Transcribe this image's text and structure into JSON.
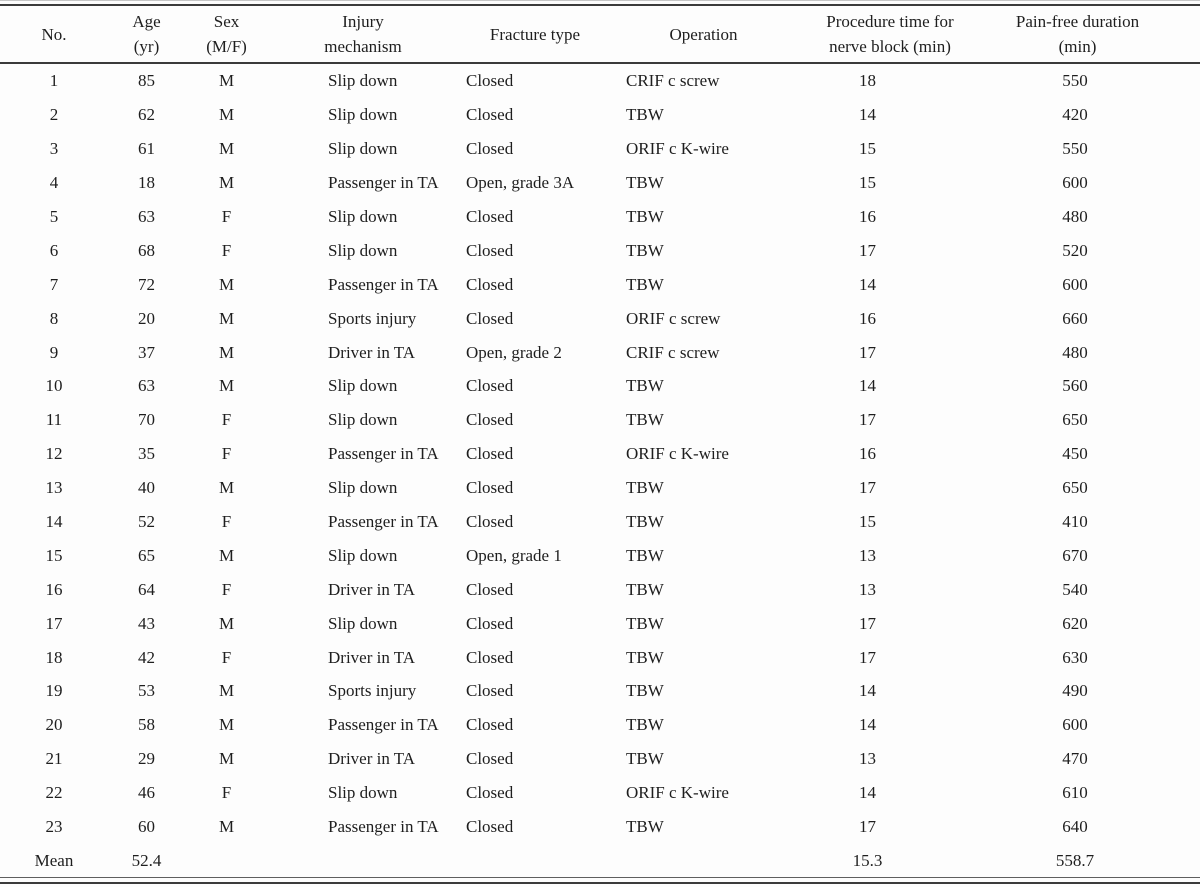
{
  "table": {
    "columns": [
      {
        "id": "no",
        "line1": "No.",
        "line2": ""
      },
      {
        "id": "age",
        "line1": "Age",
        "line2": "(yr)"
      },
      {
        "id": "sex",
        "line1": "Sex",
        "line2": "(M/F)"
      },
      {
        "id": "injury",
        "line1": "Injury",
        "line2": "mechanism"
      },
      {
        "id": "fracture",
        "line1": "Fracture type",
        "line2": ""
      },
      {
        "id": "operation",
        "line1": "Operation",
        "line2": ""
      },
      {
        "id": "procedure",
        "line1": "Procedure time for",
        "line2": "nerve block (min)"
      },
      {
        "id": "painfree",
        "line1": "Pain-free duration",
        "line2": "(min)"
      }
    ],
    "rows": [
      [
        "1",
        "85",
        "M",
        "Slip down",
        "Closed",
        "CRIF c screw",
        "18",
        "550"
      ],
      [
        "2",
        "62",
        "M",
        "Slip down",
        "Closed",
        "TBW",
        "14",
        "420"
      ],
      [
        "3",
        "61",
        "M",
        "Slip down",
        "Closed",
        "ORIF c K-wire",
        "15",
        "550"
      ],
      [
        "4",
        "18",
        "M",
        "Passenger in TA",
        "Open, grade 3A",
        "TBW",
        "15",
        "600"
      ],
      [
        "5",
        "63",
        "F",
        "Slip down",
        "Closed",
        "TBW",
        "16",
        "480"
      ],
      [
        "6",
        "68",
        "F",
        "Slip down",
        "Closed",
        "TBW",
        "17",
        "520"
      ],
      [
        "7",
        "72",
        "M",
        "Passenger in TA",
        "Closed",
        "TBW",
        "14",
        "600"
      ],
      [
        "8",
        "20",
        "M",
        "Sports injury",
        "Closed",
        "ORIF c screw",
        "16",
        "660"
      ],
      [
        "9",
        "37",
        "M",
        "Driver in TA",
        "Open, grade 2",
        "CRIF c screw",
        "17",
        "480"
      ],
      [
        "10",
        "63",
        "M",
        "Slip down",
        "Closed",
        "TBW",
        "14",
        "560"
      ],
      [
        "11",
        "70",
        "F",
        "Slip down",
        "Closed",
        "TBW",
        "17",
        "650"
      ],
      [
        "12",
        "35",
        "F",
        "Passenger in TA",
        "Closed",
        "ORIF c K-wire",
        "16",
        "450"
      ],
      [
        "13",
        "40",
        "M",
        "Slip down",
        "Closed",
        "TBW",
        "17",
        "650"
      ],
      [
        "14",
        "52",
        "F",
        "Passenger in TA",
        "Closed",
        "TBW",
        "15",
        "410"
      ],
      [
        "15",
        "65",
        "M",
        "Slip down",
        "Open, grade 1",
        "TBW",
        "13",
        "670"
      ],
      [
        "16",
        "64",
        "F",
        "Driver in TA",
        "Closed",
        "TBW",
        "13",
        "540"
      ],
      [
        "17",
        "43",
        "M",
        "Slip down",
        "Closed",
        "TBW",
        "17",
        "620"
      ],
      [
        "18",
        "42",
        "F",
        "Driver in TA",
        "Closed",
        "TBW",
        "17",
        "630"
      ],
      [
        "19",
        "53",
        "M",
        "Sports injury",
        "Closed",
        "TBW",
        "14",
        "490"
      ],
      [
        "20",
        "58",
        "M",
        "Passenger in TA",
        "Closed",
        "TBW",
        "14",
        "600"
      ],
      [
        "21",
        "29",
        "M",
        "Driver in TA",
        "Closed",
        "TBW",
        "13",
        "470"
      ],
      [
        "22",
        "46",
        "F",
        "Slip down",
        "Closed",
        "ORIF c K-wire",
        "14",
        "610"
      ],
      [
        "23",
        "60",
        "M",
        "Passenger in TA",
        "Closed",
        "TBW",
        "17",
        "640"
      ],
      [
        "Mean",
        "52.4",
        "",
        "",
        "",
        "",
        "15.3",
        "558.7"
      ]
    ]
  }
}
